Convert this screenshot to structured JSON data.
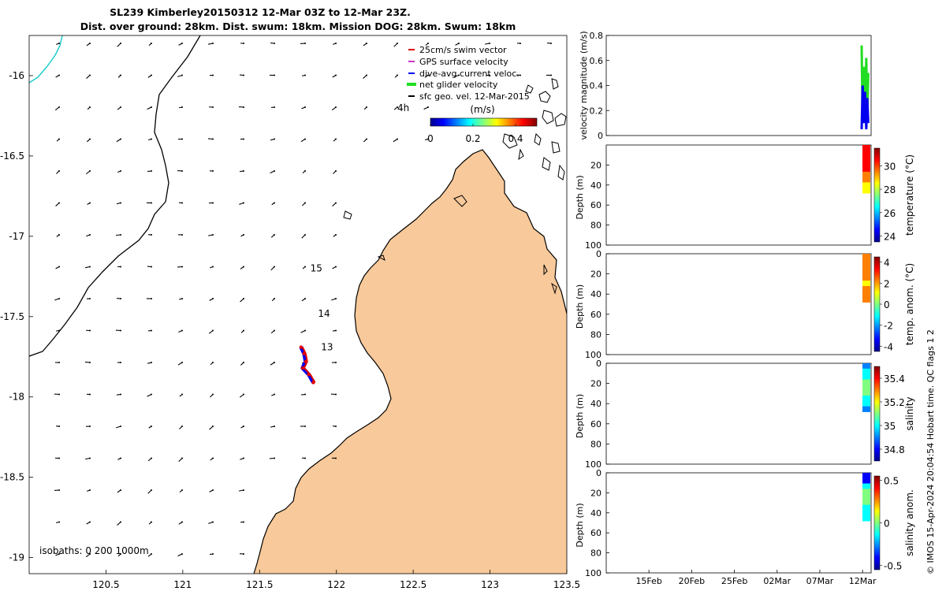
{
  "header": {
    "title_line1": "SL239 Kimberley20150312 12-Mar 03Z to 12-Mar 23Z.",
    "title_line2": "Dist. over ground: 28km. Dist. swum: 18km. Mission DOG: 28km. Swum: 18km"
  },
  "colors": {
    "land": "#f8c99a",
    "swim_vector": "#e00000",
    "gps_velocity": "#cc33cc",
    "dive_avg_current": "#0000ee",
    "net_glider_velocity": "#22dd22",
    "sfc_geo_velocity": "#000000",
    "coast_line": "#000000",
    "isobath_line": "#22cccc"
  },
  "chart_data": [
    {
      "type": "map",
      "name": "track map",
      "xlim": [
        120.0,
        123.5
      ],
      "ylim": [
        -19.1,
        -15.75
      ],
      "xticks": [
        "120.5",
        "121",
        "121.5",
        "122",
        "122.5",
        "123",
        "123.5"
      ],
      "xtick_values": [
        120.5,
        121.0,
        121.5,
        122.0,
        122.5,
        123.0,
        123.5
      ],
      "yticks": [
        "-16",
        "-16.5",
        "-17",
        "-17.5",
        "-18",
        "-18.5",
        "-19"
      ],
      "ytick_values": [
        -16.0,
        -16.5,
        -17.0,
        -17.5,
        -18.0,
        -18.5,
        -19.0
      ],
      "legend": {
        "placement": "top-right",
        "entries": [
          "25cm/s swim vector",
          "GPS surface velocity",
          "dive-avg current veloc.",
          "net glider velocity",
          "sfc geo. vel. 12-Mar-2015"
        ]
      },
      "colorbar": {
        "label": "(m/s)",
        "ticks": [
          "0",
          "0.2",
          "0.4"
        ],
        "tick_values": [
          0,
          0.2,
          0.4
        ],
        "range": [
          0,
          0.5
        ],
        "note": "4h"
      },
      "track_hour_labels": [
        {
          "text": "15",
          "lon": 121.83,
          "lat": -17.22
        },
        {
          "text": "14",
          "lon": 121.88,
          "lat": -17.5
        },
        {
          "text": "13",
          "lon": 121.9,
          "lat": -17.71
        }
      ],
      "track": [
        {
          "lon": 121.77,
          "lat": -17.69
        },
        {
          "lon": 121.79,
          "lat": -17.73
        },
        {
          "lon": 121.8,
          "lat": -17.78
        },
        {
          "lon": 121.78,
          "lat": -17.82
        },
        {
          "lon": 121.82,
          "lat": -17.86
        },
        {
          "lon": 121.85,
          "lat": -17.91
        }
      ],
      "isobaths_note": "isobaths: 0   200  1000m"
    },
    {
      "type": "line",
      "name": "velocity magnitude panel",
      "ylabel": "velocity magnitude (m/s)",
      "ylim": [
        0,
        0.8
      ],
      "yticks": [
        "0",
        "0.2",
        "0.4",
        "0.6",
        "0.8"
      ],
      "ytick_values": [
        0,
        0.2,
        0.4,
        0.6,
        0.8
      ],
      "series": [
        {
          "color": "#22dd22",
          "points": [
            [
              0,
              0.72
            ],
            [
              0.15,
              0.1
            ],
            [
              0.3,
              0.55
            ],
            [
              0.5,
              0.2
            ],
            [
              0.7,
              0.62
            ],
            [
              0.85,
              0.15
            ],
            [
              1.0,
              0.5
            ]
          ]
        },
        {
          "color": "#0000ee",
          "points": [
            [
              0,
              0.05
            ],
            [
              0.15,
              0.4
            ],
            [
              0.3,
              0.1
            ],
            [
              0.5,
              0.35
            ],
            [
              0.7,
              0.05
            ],
            [
              0.85,
              0.3
            ],
            [
              1.0,
              0.1
            ]
          ]
        }
      ]
    },
    {
      "type": "heatmap",
      "name": "temperature section",
      "ylabel": "Depth (m)",
      "ylim": [
        100,
        0
      ],
      "yticks": [
        "20",
        "40",
        "60",
        "80",
        "100"
      ],
      "ytick_values": [
        20,
        40,
        60,
        80,
        100
      ],
      "colorbar_label": "temperature (°C)",
      "colorbar_ticks": [
        "24",
        "26",
        "28",
        "30"
      ],
      "colorbar_tick_values": [
        24,
        26,
        28,
        30
      ],
      "colorbar_range": [
        23.5,
        31.5
      ],
      "column_max_depth": 48,
      "profile_values": [
        30.6,
        30.5,
        30.5,
        30.4,
        30.2,
        29.8,
        29.2,
        28.6,
        28.2
      ]
    },
    {
      "type": "heatmap",
      "name": "temperature anomaly section",
      "ylabel": "Depth (m)",
      "ylim": [
        100,
        0
      ],
      "yticks": [
        "0",
        "20",
        "40",
        "60",
        "80",
        "100"
      ],
      "ytick_values": [
        0,
        20,
        40,
        60,
        80,
        100
      ],
      "colorbar_label": "temp. anom. (°C)",
      "colorbar_ticks": [
        "4",
        "2",
        "0",
        "-2",
        "-4"
      ],
      "colorbar_tick_values": [
        4,
        2,
        0,
        -2,
        -4
      ],
      "colorbar_range": [
        -4.5,
        4.5
      ],
      "column_max_depth": 48,
      "profile_values": [
        2.2,
        2.1,
        2.0,
        2.0,
        1.8,
        1.6,
        1.9,
        2.3,
        2.6
      ]
    },
    {
      "type": "heatmap",
      "name": "salinity section",
      "ylabel": "Depth (m)",
      "ylim": [
        100,
        0
      ],
      "yticks": [
        "0",
        "20",
        "40",
        "60",
        "80",
        "100"
      ],
      "ytick_values": [
        0,
        20,
        40,
        60,
        80,
        100
      ],
      "colorbar_label": "salinity",
      "colorbar_ticks": [
        "35.4",
        "35.2",
        "35",
        "34.8"
      ],
      "colorbar_tick_values": [
        35.4,
        35.2,
        35.0,
        34.8
      ],
      "colorbar_range": [
        34.7,
        35.5
      ],
      "column_max_depth": 48,
      "profile_values": [
        34.9,
        34.95,
        35.05,
        35.1,
        35.1,
        35.08,
        35.0,
        34.95,
        34.9
      ]
    },
    {
      "type": "heatmap",
      "name": "salinity anomaly section",
      "ylabel": "Depth (m)",
      "ylim": [
        100,
        0
      ],
      "yticks": [
        "0",
        "20",
        "40",
        "60",
        "80",
        "100"
      ],
      "ytick_values": [
        0,
        20,
        40,
        60,
        80,
        100
      ],
      "colorbar_label": "salinity anom.",
      "colorbar_ticks": [
        "0.5",
        "0",
        "-0.5"
      ],
      "colorbar_tick_values": [
        0.5,
        0,
        -0.5
      ],
      "colorbar_range": [
        -0.55,
        0.55
      ],
      "column_max_depth": 48,
      "profile_values": [
        -0.45,
        -0.4,
        -0.2,
        0.0,
        0.05,
        0.0,
        -0.1,
        -0.15,
        -0.2
      ],
      "xticks": [
        "15Feb",
        "20Feb",
        "25Feb",
        "02Mar",
        "07Mar",
        "12Mar"
      ],
      "xtick_values": [
        "2015-02-15",
        "2015-02-20",
        "2015-02-25",
        "2015-03-02",
        "2015-03-07",
        "2015-03-12"
      ],
      "xlim": [
        "2015-02-10",
        "2015-03-13"
      ]
    }
  ],
  "side_note": "© IMOS 15-Apr-2024 20:04:54 Hobart time. QC flags 1  2"
}
